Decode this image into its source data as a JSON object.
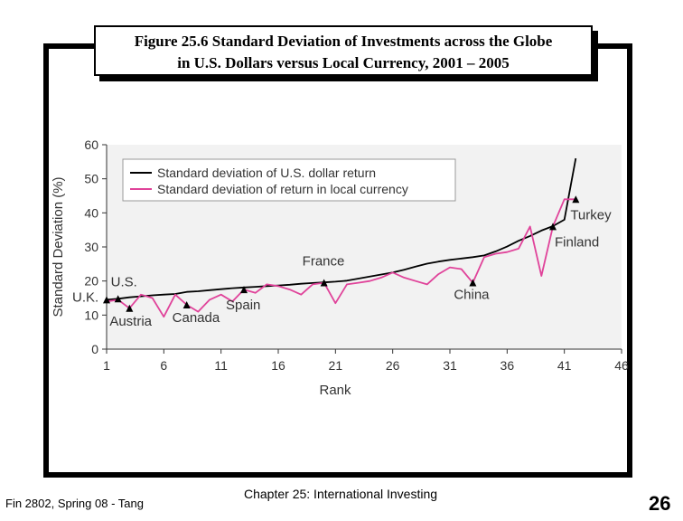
{
  "slide": {
    "title_line1": "Figure 25.6 Standard Deviation of Investments across the Globe",
    "title_line2": "in U.S. Dollars versus Local Currency, 2001 – 2005",
    "footer_left": "Fin 2802, Spring 08 - Tang",
    "footer_center": "Chapter 25: International Investing",
    "page_number": "26"
  },
  "chart_data": {
    "type": "line",
    "title": "",
    "xlabel": "Rank",
    "ylabel": "Standard Deviation (%)",
    "xlim": [
      1,
      46
    ],
    "ylim": [
      0,
      60
    ],
    "xticks": [
      1,
      6,
      11,
      16,
      21,
      26,
      31,
      36,
      41,
      46
    ],
    "yticks": [
      0,
      10,
      20,
      30,
      40,
      50,
      60
    ],
    "grid": false,
    "legend_position": "top-left",
    "colors": {
      "usd": "#000000",
      "local": "#e0439a",
      "marker": "#000000",
      "axis": "#333333",
      "plot_bg": "#f2f2f2"
    },
    "series": [
      {
        "name": "Standard deviation of U.S. dollar return",
        "color": "#000000",
        "x": [
          1,
          2,
          3,
          4,
          5,
          6,
          7,
          8,
          9,
          10,
          11,
          12,
          13,
          14,
          15,
          16,
          17,
          18,
          19,
          20,
          21,
          22,
          23,
          24,
          25,
          26,
          27,
          28,
          29,
          30,
          31,
          32,
          33,
          34,
          35,
          36,
          37,
          38,
          39,
          40,
          41,
          42
        ],
        "values": [
          14.5,
          14.8,
          15.2,
          15.5,
          15.8,
          16,
          16.2,
          16.8,
          17,
          17.3,
          17.6,
          17.9,
          18.1,
          18.3,
          18.5,
          18.7,
          18.9,
          19.2,
          19.4,
          19.6,
          19.8,
          20.1,
          20.7,
          21.3,
          21.9,
          22.5,
          23.3,
          24.2,
          25.1,
          25.7,
          26.2,
          26.6,
          27,
          27.5,
          28.7,
          30.1,
          31.8,
          33.2,
          34.8,
          36.1,
          38,
          56
        ]
      },
      {
        "name": "Standard deviation of return in local currency",
        "color": "#e0439a",
        "x": [
          1,
          2,
          3,
          4,
          5,
          6,
          7,
          8,
          9,
          10,
          11,
          12,
          13,
          14,
          15,
          16,
          17,
          18,
          19,
          20,
          21,
          22,
          23,
          24,
          25,
          26,
          27,
          28,
          29,
          30,
          31,
          32,
          33,
          34,
          35,
          36,
          37,
          38,
          39,
          40,
          41,
          42
        ],
        "values": [
          14,
          14.5,
          12,
          16,
          15,
          9.5,
          16,
          13,
          11,
          14.5,
          16,
          14,
          17.5,
          16.5,
          19,
          18.5,
          17.5,
          16,
          19,
          19.5,
          13.5,
          19,
          19.5,
          20,
          21,
          22.5,
          21,
          20,
          19,
          22,
          24,
          23.5,
          19.5,
          27,
          28,
          28.5,
          29.5,
          36,
          21.5,
          36,
          44,
          44
        ]
      }
    ],
    "annotations": [
      {
        "text": "U.S.",
        "x": 2,
        "y": 14.8
      },
      {
        "text": "U.K.",
        "x": 1,
        "y": 14.5
      },
      {
        "text": "Austria",
        "x": 3,
        "y": 12
      },
      {
        "text": "Canada",
        "x": 8,
        "y": 13
      },
      {
        "text": "Spain",
        "x": 13,
        "y": 17.5
      },
      {
        "text": "France",
        "x": 20,
        "y": 19.5
      },
      {
        "text": "China",
        "x": 33,
        "y": 19.5
      },
      {
        "text": "Finland",
        "x": 40,
        "y": 36
      },
      {
        "text": "Turkey",
        "x": 42,
        "y": 44
      }
    ]
  }
}
